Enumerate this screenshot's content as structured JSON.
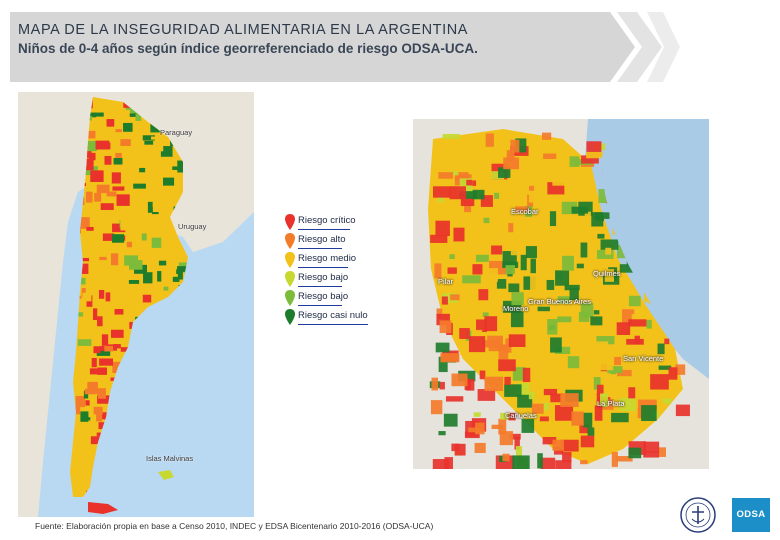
{
  "header": {
    "title": "MAPA DE LA INSEGURIDAD ALIMENTARIA EN LA ARGENTINA",
    "subtitle": "Niños de 0-4 años según índice georreferenciado de riesgo ODSA-UCA."
  },
  "legend": {
    "items": [
      {
        "label": "Riesgo crítico",
        "color": "#e8322b"
      },
      {
        "label": "Riesgo alto",
        "color": "#f47b2a"
      },
      {
        "label": "Riesgo medio",
        "color": "#f2c21b"
      },
      {
        "label": "Riesgo bajo",
        "color": "#c7d931"
      },
      {
        "label": "Riesgo bajo",
        "color": "#7dbb3a"
      },
      {
        "label": "Riesgo casi nulo",
        "color": "#1e7d2c"
      }
    ]
  },
  "map_argentina": {
    "labels": [
      "Paraguay",
      "Uruguay",
      "Islas Malvinas"
    ]
  },
  "map_buenos_aires": {
    "labels": [
      "Escobar",
      "Pilar",
      "Gran Buenos Aires",
      "Quilmes",
      "Moreno",
      "La Plata",
      "Cañuelas",
      "San Vicente"
    ]
  },
  "source": "Fuente: Elaboración propia en base a Censo 2010, INDEC y EDSA Bicentenario 2010-2016 (ODSA-UCA)",
  "logo": {
    "text": "ODSA"
  },
  "colors": {
    "header_bg": "#d6d6d6",
    "sea": "#b9d8f1",
    "logo_bg": "#1c8fc9"
  }
}
